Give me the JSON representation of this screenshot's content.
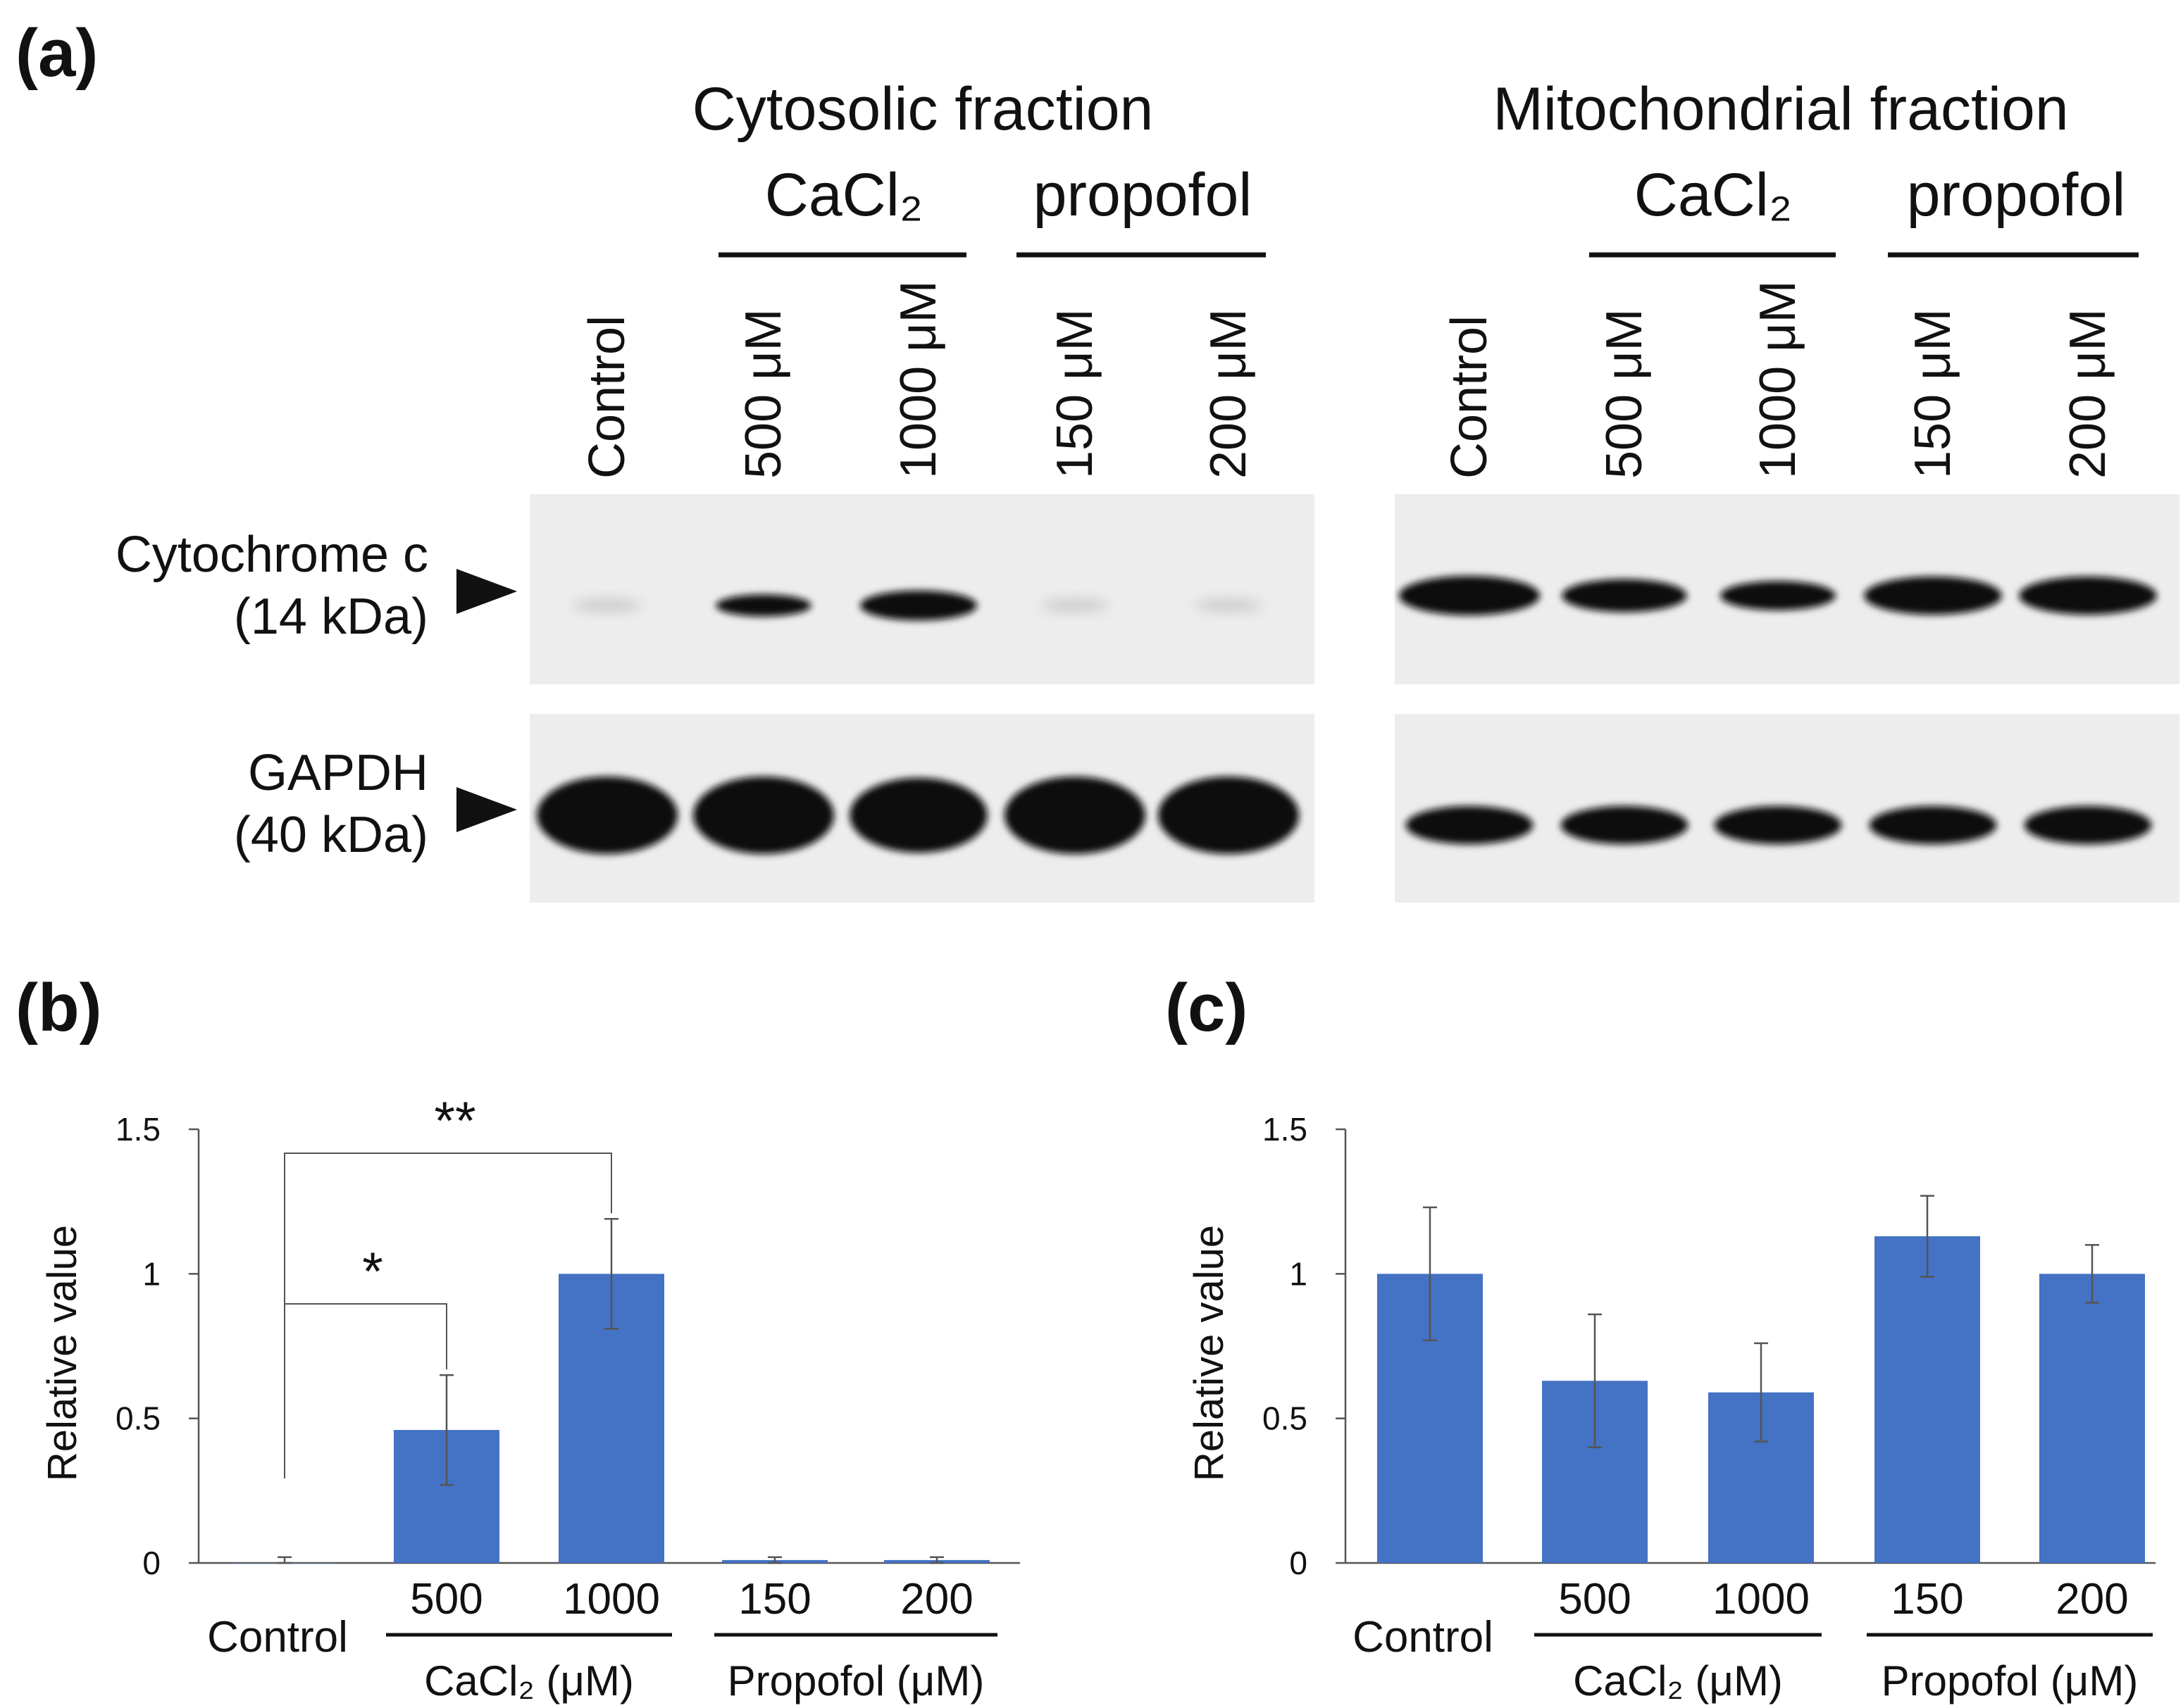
{
  "panel_a": {
    "label": "(a)",
    "cyto_title": "Cytosolic fraction",
    "mito_title": "Mitochondrial fraction",
    "group_cacl2": "CaCl₂",
    "group_propofol": "propofol",
    "lanes": [
      "Control",
      "500 μM",
      "1000 μM",
      "150 μM",
      "200 μM"
    ],
    "row1_label": "Cytochrome c",
    "row1_kda": "(14 kDa)",
    "row2_label": "GAPDH",
    "row2_kda": "(40 kDa)",
    "cyto_cytc_intensity": [
      0.05,
      0.55,
      0.95,
      0.04,
      0.03
    ],
    "mito_cytc_intensity": [
      1.0,
      0.75,
      0.6,
      0.95,
      0.95
    ],
    "cyto_gapdh_intensity": [
      1.0,
      1.0,
      0.95,
      1.0,
      1.0
    ],
    "mito_gapdh_intensity": [
      0.95,
      0.95,
      0.95,
      0.95,
      0.95
    ]
  },
  "panel_b": {
    "label": "(b)"
  },
  "panel_c": {
    "label": "(c)"
  },
  "axis_group_labels": {
    "control": "Control",
    "cacl2": "CaCl₂ (μM)",
    "propofol": "Propofol (μM)"
  },
  "colors": {
    "bar": "#4472C4",
    "band": "#0a0a0a",
    "blot_bg": "#ededed"
  },
  "chart_data": [
    {
      "type": "bar",
      "panel": "(b)",
      "categories": [
        "Control",
        "500",
        "1000",
        "150",
        "200"
      ],
      "values": [
        0.0,
        0.46,
        1.0,
        0.01,
        0.01
      ],
      "errors": [
        0.02,
        0.19,
        0.19,
        0.01,
        0.01
      ],
      "ylabel": "Relative value",
      "ylim": [
        0,
        1.5
      ],
      "yticks": [
        0,
        0.5,
        1,
        1.5
      ],
      "ytick_labels": [
        "0",
        "0.5",
        "1",
        "1.5"
      ],
      "annotations": [
        {
          "text": "*",
          "from": "Control",
          "to": "500"
        },
        {
          "text": "**",
          "from": "Control",
          "to": "1000"
        }
      ]
    },
    {
      "type": "bar",
      "panel": "(c)",
      "categories": [
        "Control",
        "500",
        "1000",
        "150",
        "200"
      ],
      "values": [
        1.0,
        0.63,
        0.59,
        1.13,
        1.0
      ],
      "errors": [
        0.23,
        0.23,
        0.17,
        0.14,
        0.1
      ],
      "ylabel": "Relative value",
      "ylim": [
        0,
        1.5
      ],
      "yticks": [
        0,
        0.5,
        1,
        1.5
      ],
      "ytick_labels": [
        "0",
        "0.5",
        "1",
        "1.5"
      ]
    }
  ]
}
